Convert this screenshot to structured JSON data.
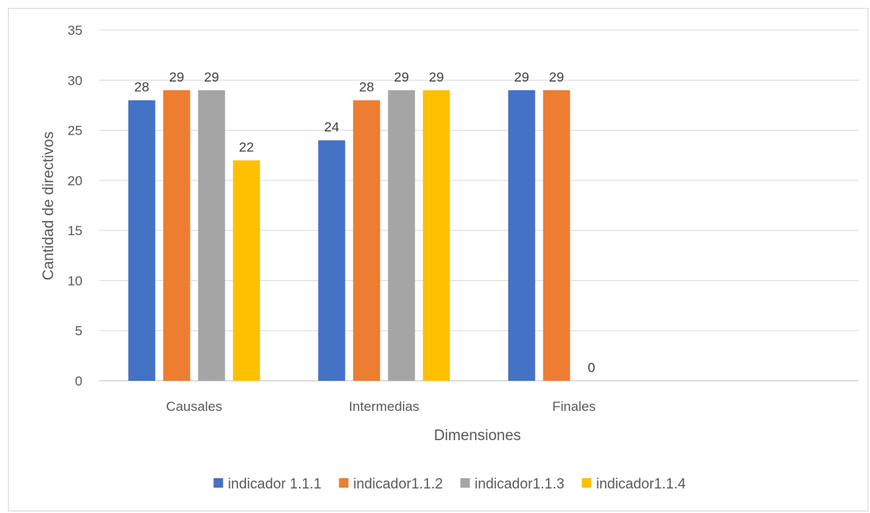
{
  "chart_data": {
    "type": "bar",
    "title": "",
    "xlabel": "Dimensiones",
    "ylabel": "Cantidad de directivos",
    "ylim": [
      0,
      35
    ],
    "ytick_step": 5,
    "grid": true,
    "legend_position": "bottom",
    "categories": [
      "Causales",
      "Intermedias",
      "Finales",
      ""
    ],
    "series": [
      {
        "name": "indicador 1.1.1",
        "color": "#4472C4",
        "values": [
          28,
          24,
          29,
          null
        ]
      },
      {
        "name": "indicador1.1.2",
        "color": "#ED7D31",
        "values": [
          29,
          28,
          29,
          null
        ]
      },
      {
        "name": "indicador1.1.3",
        "color": "#A5A5A5",
        "values": [
          29,
          29,
          0,
          null
        ]
      },
      {
        "name": "indicador1.1.4",
        "color": "#FFC000",
        "values": [
          22,
          29,
          null,
          null
        ]
      }
    ]
  }
}
